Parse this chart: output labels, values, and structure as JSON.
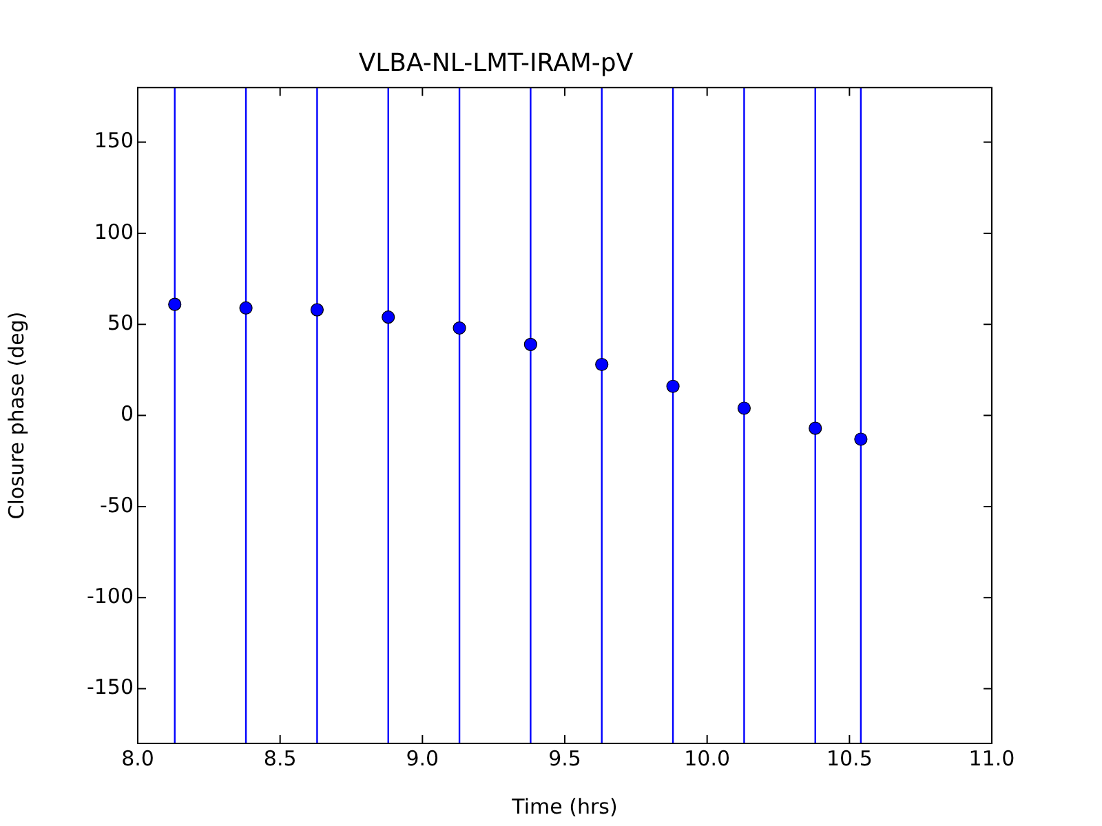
{
  "chart_data": {
    "type": "scatter",
    "title": "VLBA-NL-LMT-IRAM-pV",
    "xlabel": "Time (hrs)",
    "ylabel": "Closure phase (deg)",
    "x": [
      8.13,
      8.38,
      8.63,
      8.88,
      9.13,
      9.38,
      9.63,
      9.88,
      10.13,
      10.38,
      10.54
    ],
    "series": [
      {
        "color": "#0000ff",
        "values": [
          61,
          59,
          58,
          54,
          48,
          39,
          28,
          16,
          4,
          -7,
          -13
        ],
        "errors": [
          [
            -180,
            180
          ],
          [
            -180,
            180
          ],
          [
            -180,
            180
          ],
          [
            -180,
            180
          ],
          [
            -180,
            180
          ],
          [
            -180,
            180
          ],
          [
            -180,
            180
          ],
          [
            -180,
            180
          ],
          [
            -180,
            180
          ],
          [
            -180,
            180
          ],
          [
            -180,
            180
          ]
        ]
      }
    ],
    "xlim": [
      8,
      11
    ],
    "xticks": [
      {
        "value": 8,
        "label": "8.0"
      },
      {
        "value": 8.5,
        "label": "8.5"
      },
      {
        "value": 9,
        "label": "9.0"
      },
      {
        "value": 9.5,
        "label": "9.5"
      },
      {
        "value": 10,
        "label": "10.0"
      },
      {
        "value": 10.5,
        "label": "10.5"
      },
      {
        "value": 11,
        "label": "11.0"
      }
    ],
    "ylim": [
      -180,
      180
    ],
    "yticks": [
      -150,
      -100,
      -50,
      0,
      50,
      100,
      150
    ],
    "marker": "circle",
    "grid": false,
    "legend": false
  }
}
